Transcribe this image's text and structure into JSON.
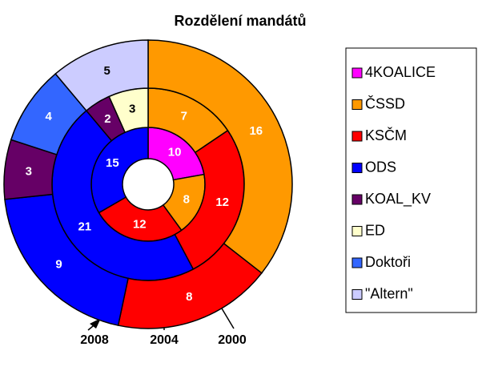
{
  "chart_data": {
    "type": "donut",
    "title": "Rozdělení mandátů",
    "categories": [
      "4KOALICE",
      "ČSSD",
      "KSČM",
      "ODS",
      "KOAL_KV",
      "ED",
      "Doktoři",
      "\"Altern\""
    ],
    "colors": [
      "#ff00ff",
      "#ff9900",
      "#ff0000",
      "#0000ff",
      "#660066",
      "#ffffcc",
      "#3366ff",
      "#ccccff"
    ],
    "series": [
      {
        "name": "2000",
        "values": [
          10,
          8,
          12,
          15,
          null,
          null,
          null,
          null
        ]
      },
      {
        "name": "2004",
        "values": [
          null,
          7,
          12,
          21,
          2,
          3,
          null,
          null
        ]
      },
      {
        "name": "2008",
        "values": [
          null,
          16,
          8,
          9,
          3,
          null,
          4,
          5
        ]
      }
    ],
    "legend": "right"
  }
}
